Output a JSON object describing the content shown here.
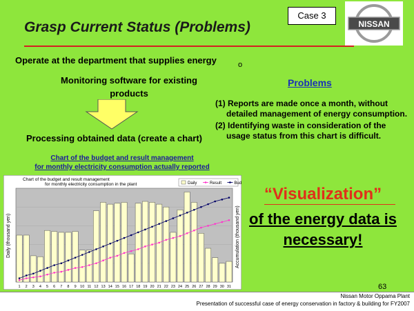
{
  "header": {
    "title": "Grasp Current Status (Problems)",
    "case_label": "Case 3",
    "logo_text": "NISSAN"
  },
  "left": {
    "subtitle": "Operate at the department that supplies energy",
    "subtitle_mark": "o",
    "monitoring": "Monitoring software for existing products",
    "processing": "Processing obtained data (create a chart)",
    "chart_caption_1": "Chart of the budget and result management",
    "chart_caption_2": "for monthly electricity consumption actually reported"
  },
  "problems": {
    "heading": "Problems",
    "items": [
      "(1) Reports are made once a month, without detailed management of energy consumption.",
      "(2) Identifying waste in consideration of the usage status from this chart is difficult."
    ]
  },
  "visualization": {
    "line1": "“Visualization”",
    "line2": "of the energy data is necessary!"
  },
  "footer": {
    "page_number": "63",
    "plant": "Nissan Motor Oppama Plant",
    "presentation": "Presentation of successful case of energy conservation in factory & building for FY2007"
  },
  "chart_data": {
    "type": "bar",
    "title": "Chart of the budget and result management for monthly electricity consumption in the plant",
    "ylabel": "Daily (thousand yen)",
    "y2label": "Accumulation (thousand yen)",
    "legend_position": "top-right",
    "categories": [
      "1",
      "2",
      "3",
      "4",
      "5",
      "6",
      "7",
      "8",
      "9",
      "10",
      "11",
      "12",
      "13",
      "14",
      "15",
      "16",
      "17",
      "18",
      "19",
      "20",
      "21",
      "22",
      "23",
      "24",
      "25",
      "26",
      "27",
      "28",
      "29",
      "30",
      "31"
    ],
    "series": [
      {
        "name": "Daily",
        "kind": "bar",
        "color": "#ffffcc",
        "values": [
          50,
          50,
          28,
          27,
          55,
          54,
          53,
          53,
          54,
          34,
          34,
          76,
          85,
          83,
          84,
          85,
          30,
          84,
          86,
          85,
          83,
          80,
          53,
          77,
          96,
          85,
          52,
          36,
          26,
          20,
          22
        ]
      },
      {
        "name": "Result",
        "kind": "line",
        "color": "#ff33cc",
        "values": [
          2,
          4,
          5,
          6,
          8,
          10,
          11,
          13,
          15,
          16,
          18,
          20,
          23,
          26,
          28,
          31,
          33,
          35,
          38,
          40,
          42,
          45,
          47,
          49,
          52,
          55,
          58,
          60,
          62,
          64,
          66
        ]
      },
      {
        "name": "Budget",
        "kind": "line",
        "color": "#000066",
        "values": [
          4,
          7,
          9,
          12,
          15,
          18,
          20,
          23,
          26,
          29,
          32,
          35,
          38,
          41,
          44,
          47,
          50,
          53,
          56,
          59,
          62,
          65,
          68,
          71,
          74,
          77,
          80,
          83,
          86,
          88,
          90
        ]
      }
    ],
    "ylim": [
      0,
      100
    ],
    "y2lim": [
      0,
      100
    ],
    "grid": true
  }
}
